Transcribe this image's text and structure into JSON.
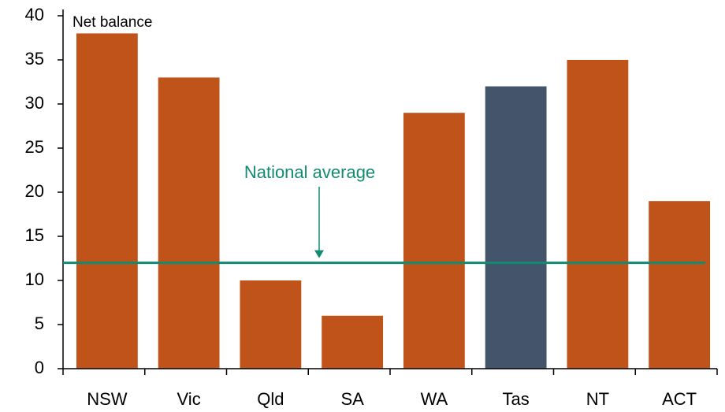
{
  "chart_data": {
    "type": "bar",
    "y_label": "Net balance",
    "categories": [
      "NSW",
      "Vic",
      "Qld",
      "SA",
      "WA",
      "Tas",
      "NT",
      "ACT"
    ],
    "values": [
      38,
      33,
      10,
      6,
      29,
      32,
      35,
      19
    ],
    "colors": [
      "#c0531a",
      "#c0531a",
      "#c0531a",
      "#c0531a",
      "#c0531a",
      "#44546a",
      "#c0531a",
      "#c0531a"
    ],
    "ylim": [
      0,
      40
    ],
    "yticks": [
      0,
      5,
      10,
      15,
      20,
      25,
      30,
      35,
      40
    ],
    "reference_line": {
      "value": 12,
      "label": "National average",
      "color": "#138a72"
    }
  }
}
